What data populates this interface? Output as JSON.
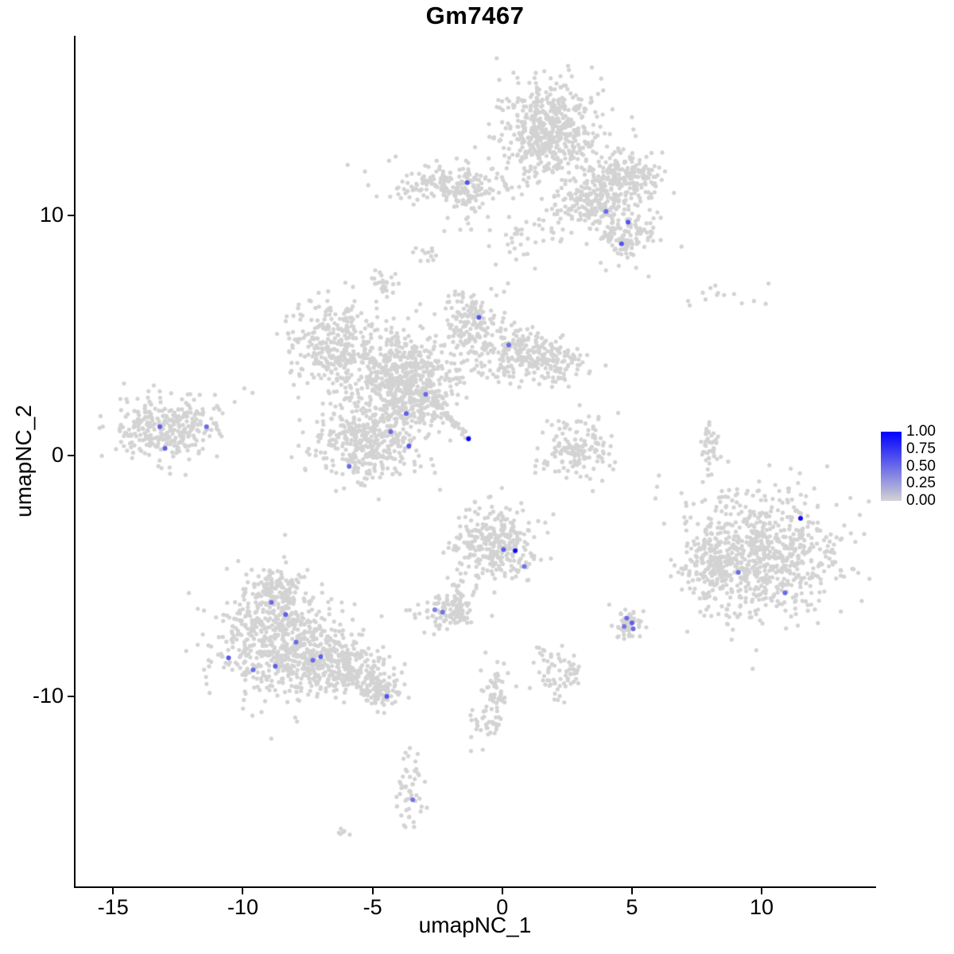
{
  "title": "Gm7467",
  "axes": {
    "x": {
      "label": "umapNC_1",
      "ticks": [
        -15,
        -10,
        -5,
        0,
        5,
        10
      ]
    },
    "y": {
      "label": "umapNC_2",
      "ticks": [
        10,
        0,
        -10
      ]
    }
  },
  "legend": {
    "ticks": [
      "1.00",
      "0.75",
      "0.50",
      "0.25",
      "0.00"
    ],
    "color_high": "#0000ff",
    "color_low": "#d3d3d3"
  },
  "style": {
    "background": "#ffffff",
    "point_color": "#d3d3d3",
    "point_radius": 2.6,
    "expressing_point_radius": 3.0,
    "axis_color": "#000000"
  },
  "chart_data": {
    "type": "scatter",
    "title": "Gm7467",
    "xlabel": "umapNC_1",
    "ylabel": "umapNC_2",
    "xlim": [
      -16.45,
      14.35
    ],
    "ylim": [
      -17.9,
      17.45
    ],
    "x_ticks": [
      -15,
      -10,
      -5,
      0,
      5,
      10
    ],
    "y_ticks": [
      10,
      0,
      -10
    ],
    "grid": false,
    "legend_position": "right",
    "colorbar": {
      "label_values": [
        1.0,
        0.75,
        0.5,
        0.25,
        0.0
      ],
      "high": "#0000ff",
      "low": "#d3d3d3"
    },
    "seed": 12345,
    "background_clusters": {
      "format": [
        "cx",
        "cy",
        "sx",
        "sy",
        "n"
      ],
      "data": [
        [
          1.78,
          13.5,
          0.95,
          1.0,
          550
        ],
        [
          4.7,
          11.5,
          0.75,
          0.6,
          220
        ],
        [
          3.3,
          10.5,
          0.7,
          0.5,
          150
        ],
        [
          4.8,
          9.2,
          0.55,
          0.55,
          130
        ],
        [
          -1.9,
          11.3,
          1.2,
          0.38,
          200
        ],
        [
          -1.3,
          10.2,
          0.6,
          0.45,
          25
        ],
        [
          1.2,
          9.3,
          0.8,
          0.6,
          40
        ],
        [
          -2.9,
          8.35,
          0.35,
          0.25,
          12
        ],
        [
          -6.5,
          4.7,
          0.8,
          0.9,
          280
        ],
        [
          -4.6,
          7.2,
          0.3,
          0.25,
          25
        ],
        [
          -4.05,
          3.55,
          1.1,
          0.95,
          450
        ],
        [
          -1.1,
          5.4,
          0.55,
          0.75,
          180
        ],
        [
          0.7,
          4.2,
          0.85,
          0.55,
          220
        ],
        [
          2.4,
          3.9,
          0.45,
          0.4,
          60
        ],
        [
          -3.4,
          2.4,
          0.8,
          0.6,
          200
        ],
        [
          -5.1,
          0.6,
          1.0,
          0.85,
          380
        ],
        [
          -12.9,
          1.25,
          1.05,
          0.7,
          300
        ],
        [
          -14.3,
          0.6,
          0.3,
          0.3,
          12
        ],
        [
          2.9,
          0.26,
          0.7,
          0.65,
          150
        ],
        [
          8.0,
          0.3,
          0.18,
          0.6,
          40
        ],
        [
          8.4,
          6.6,
          1.0,
          0.28,
          14
        ],
        [
          10.2,
          -4.2,
          1.5,
          1.35,
          700
        ],
        [
          8.0,
          -4.6,
          0.5,
          0.8,
          150
        ],
        [
          -0.3,
          -3.7,
          0.8,
          0.75,
          300
        ],
        [
          -1.65,
          -5.9,
          0.25,
          0.5,
          45
        ],
        [
          -2.2,
          -6.57,
          0.6,
          0.33,
          80
        ],
        [
          -8.7,
          -5.5,
          0.6,
          0.45,
          130
        ],
        [
          -8.6,
          -7.7,
          1.3,
          1.15,
          600
        ],
        [
          -6.2,
          -8.8,
          0.9,
          0.6,
          280
        ],
        [
          -4.7,
          -9.8,
          0.45,
          0.35,
          90
        ],
        [
          4.9,
          -7.0,
          0.3,
          0.3,
          50
        ],
        [
          -0.27,
          -9.7,
          0.25,
          0.55,
          45
        ],
        [
          -0.6,
          -11.1,
          0.3,
          0.4,
          35
        ],
        [
          2.27,
          -9.0,
          0.4,
          0.45,
          55
        ],
        [
          1.5,
          -8.2,
          0.2,
          0.2,
          10
        ],
        [
          -3.55,
          -13.8,
          0.28,
          0.75,
          50
        ],
        [
          -6.15,
          -15.6,
          0.15,
          0.12,
          6
        ]
      ]
    },
    "streaks": [
      {
        "x1": -2.7,
        "y1": 2.3,
        "x2": -1.35,
        "y2": 0.8,
        "n": 45,
        "jitter": 0.07
      }
    ],
    "expressing_points": [
      {
        "x": -1.35,
        "y": 11.35,
        "v": 0.6
      },
      {
        "x": 4.0,
        "y": 10.15,
        "v": 0.5
      },
      {
        "x": 4.85,
        "y": 9.7,
        "v": 0.6
      },
      {
        "x": 4.6,
        "y": 8.8,
        "v": 0.6
      },
      {
        "x": -0.9,
        "y": 5.75,
        "v": 0.6
      },
      {
        "x": 0.25,
        "y": 4.6,
        "v": 0.5
      },
      {
        "x": -2.95,
        "y": 2.55,
        "v": 0.5
      },
      {
        "x": -3.7,
        "y": 1.75,
        "v": 0.55
      },
      {
        "x": -4.3,
        "y": 1.0,
        "v": 0.5
      },
      {
        "x": -3.6,
        "y": 0.4,
        "v": 0.6
      },
      {
        "x": -5.9,
        "y": -0.45,
        "v": 0.5
      },
      {
        "x": -1.3,
        "y": 0.7,
        "v": 1.0
      },
      {
        "x": -13.2,
        "y": 1.2,
        "v": 0.55
      },
      {
        "x": -11.4,
        "y": 1.2,
        "v": 0.5
      },
      {
        "x": -13.0,
        "y": 0.3,
        "v": 0.55
      },
      {
        "x": 11.5,
        "y": -2.6,
        "v": 0.95
      },
      {
        "x": 9.1,
        "y": -4.85,
        "v": 0.5
      },
      {
        "x": 10.9,
        "y": -5.7,
        "v": 0.5
      },
      {
        "x": 0.05,
        "y": -3.9,
        "v": 0.55
      },
      {
        "x": 0.5,
        "y": -3.95,
        "v": 0.95
      },
      {
        "x": 0.85,
        "y": -4.6,
        "v": 0.45
      },
      {
        "x": -8.9,
        "y": -6.1,
        "v": 0.5
      },
      {
        "x": -8.35,
        "y": -6.6,
        "v": 0.55
      },
      {
        "x": -7.95,
        "y": -7.75,
        "v": 0.5
      },
      {
        "x": -10.55,
        "y": -8.4,
        "v": 0.6
      },
      {
        "x": -8.75,
        "y": -8.75,
        "v": 0.55
      },
      {
        "x": -7.3,
        "y": -8.5,
        "v": 0.5
      },
      {
        "x": -7.0,
        "y": -8.35,
        "v": 0.55
      },
      {
        "x": -9.6,
        "y": -8.9,
        "v": 0.5
      },
      {
        "x": -4.45,
        "y": -10.0,
        "v": 0.6
      },
      {
        "x": -2.6,
        "y": -6.4,
        "v": 0.4
      },
      {
        "x": -2.3,
        "y": -6.5,
        "v": 0.45
      },
      {
        "x": 4.8,
        "y": -6.75,
        "v": 0.5
      },
      {
        "x": 5.0,
        "y": -6.95,
        "v": 0.55
      },
      {
        "x": 4.7,
        "y": -7.1,
        "v": 0.45
      },
      {
        "x": 5.05,
        "y": -7.2,
        "v": 0.5
      },
      {
        "x": -3.45,
        "y": -14.3,
        "v": 0.45
      }
    ]
  }
}
